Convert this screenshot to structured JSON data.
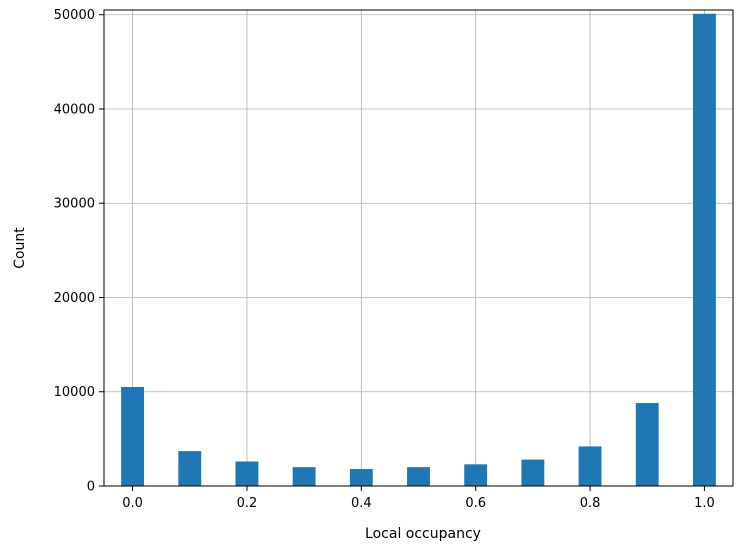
{
  "chart_data": {
    "type": "bar",
    "xlabel": "Local occupancy",
    "ylabel": "Count",
    "xlim": [
      -0.05,
      1.05
    ],
    "ylim": [
      0,
      50500
    ],
    "grid": true,
    "bar_width": 0.04,
    "bar_color": "#1f77b4",
    "x": [
      0.0,
      0.1,
      0.2,
      0.3,
      0.4,
      0.5,
      0.6,
      0.7,
      0.8,
      0.9,
      1.0
    ],
    "values": [
      10500,
      3700,
      2600,
      2000,
      1800,
      2000,
      2300,
      2800,
      4200,
      8800,
      50100
    ],
    "xticks": [
      0.0,
      0.2,
      0.4,
      0.6,
      0.8,
      1.0
    ],
    "xtick_labels": [
      "0.0",
      "0.2",
      "0.4",
      "0.6",
      "0.8",
      "1.0"
    ],
    "yticks": [
      0,
      10000,
      20000,
      30000,
      40000,
      50000
    ],
    "ytick_labels": [
      "0",
      "10000",
      "20000",
      "30000",
      "40000",
      "50000"
    ]
  }
}
